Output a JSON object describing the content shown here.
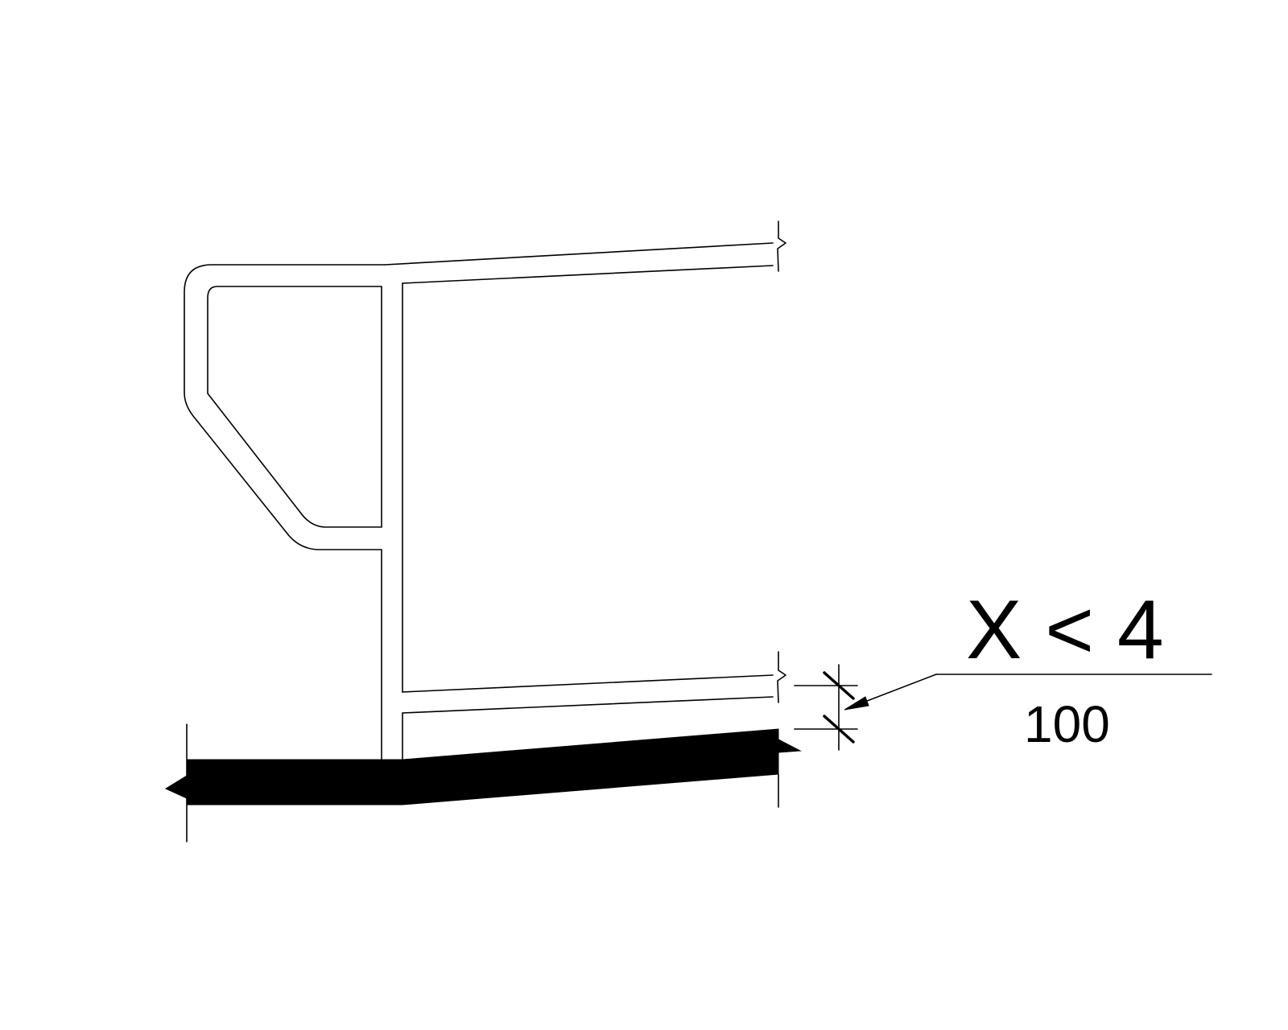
{
  "dimension_label": {
    "value": "X < 4",
    "metric": "100"
  },
  "colors": {
    "line": "#000000",
    "background": "#ffffff",
    "floor_fill": "#000000"
  },
  "icons": [
    "break-line-symbol",
    "dimension-tick",
    "leader-arrow"
  ]
}
